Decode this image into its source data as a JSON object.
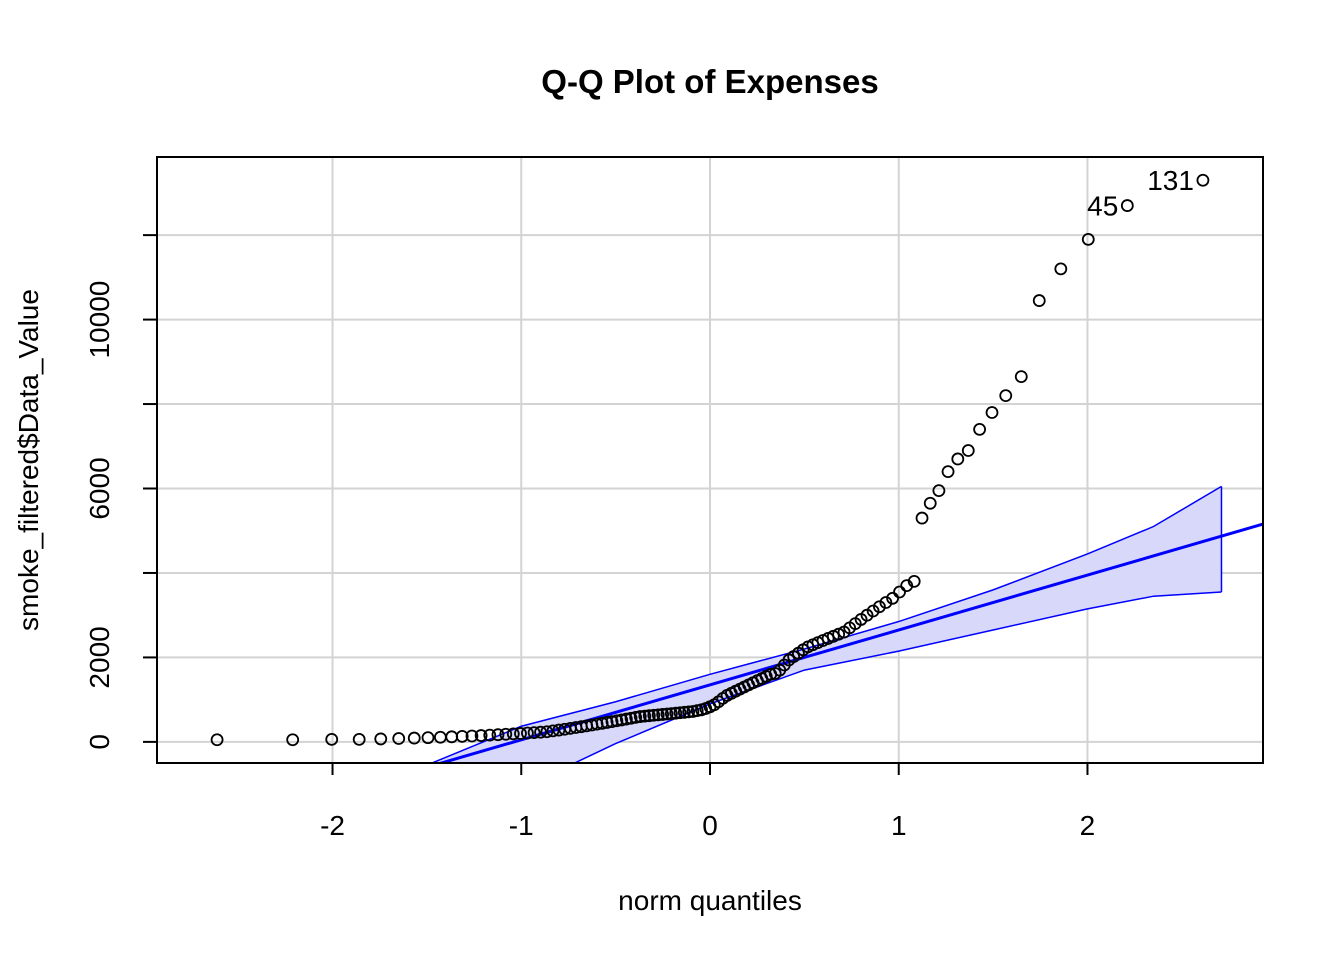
{
  "chart_data": {
    "type": "scatter",
    "title": "Q-Q Plot of Expenses",
    "xlabel": "norm quantiles",
    "ylabel": "smoke_filtered$Data_Value",
    "xlim": [
      -2.93,
      2.93
    ],
    "ylim": [
      -500,
      13850
    ],
    "x_ticks": [
      -2,
      -1,
      0,
      1,
      2
    ],
    "x_tick_labels": [
      "-2",
      "-1",
      "0",
      "1",
      "2"
    ],
    "y_ticks": [
      0,
      2000,
      6000,
      10000
    ],
    "y_tick_labels": [
      "0",
      "2000",
      "6000",
      "10000"
    ],
    "y_gridlines": [
      0,
      2000,
      4000,
      6000,
      8000,
      10000,
      12000
    ],
    "x_gridlines": [
      -2,
      -1,
      0,
      1,
      2
    ],
    "grid": true,
    "sample_quantiles_sorted": [
      50,
      50,
      60,
      60,
      70,
      80,
      90,
      100,
      110,
      120,
      130,
      140,
      150,
      160,
      170,
      180,
      190,
      200,
      210,
      220,
      230,
      240,
      260,
      280,
      300,
      320,
      340,
      360,
      380,
      400,
      420,
      440,
      460,
      480,
      500,
      520,
      540,
      560,
      580,
      600,
      610,
      620,
      630,
      640,
      650,
      660,
      670,
      680,
      690,
      700,
      710,
      720,
      740,
      760,
      790,
      830,
      880,
      950,
      1030,
      1100,
      1150,
      1200,
      1250,
      1300,
      1350,
      1400,
      1450,
      1500,
      1550,
      1600,
      1620,
      1700,
      1820,
      1940,
      2020,
      2100,
      2180,
      2250,
      2300,
      2350,
      2400,
      2450,
      2500,
      2550,
      2600,
      2700,
      2800,
      2900,
      3000,
      3100,
      3200,
      3300,
      3400,
      3550,
      3700,
      3800,
      5300,
      5650,
      5950,
      6400,
      6700,
      6900,
      7400,
      7800,
      8200,
      8650,
      10450,
      11200,
      11900,
      12700,
      13300
    ],
    "labeled_points": [
      {
        "label": "45",
        "y": 12700
      },
      {
        "label": "131",
        "y": 13300
      }
    ],
    "reference_line": {
      "intercept": 1350,
      "slope": 1300
    },
    "confidence_band": {
      "x": [
        -1.5,
        -1.0,
        -0.5,
        0.0,
        0.5,
        1.0,
        1.5,
        2.0,
        2.35,
        2.71
      ],
      "lower": [
        -2400,
        -1100,
        -40,
        900,
        1700,
        2150,
        2650,
        3150,
        3450,
        3550
      ],
      "upper": [
        -550,
        370,
        950,
        1600,
        2200,
        2850,
        3600,
        4450,
        5100,
        6050
      ]
    },
    "colors": {
      "points": "#000000",
      "reference_line": "#0000ff",
      "band_fill": "#d8d8fb",
      "band_edge": "#0000ff",
      "grid": "#d3d3d3"
    }
  }
}
